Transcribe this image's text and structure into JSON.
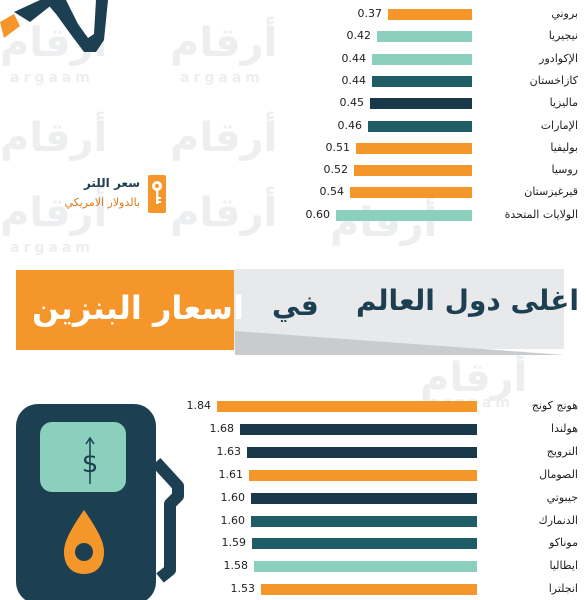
{
  "colors": {
    "orange": "#f5962a",
    "teal": "#1e5c66",
    "mint": "#8ad0bc",
    "navy": "#19394a",
    "dark": "#1d3f52",
    "lightgray": "#e7e9ea"
  },
  "watermark": {
    "arabic": "أرقام",
    "latin": "argaam"
  },
  "legend": {
    "line1": "سعر اللتر",
    "line2": "بالدولار الامريكي",
    "icon": "key-icon"
  },
  "banner": {
    "title_a": "اغلى دول العالم",
    "title_b": "في",
    "title_c": "اسعار البنزين"
  },
  "chart_data": [
    {
      "type": "bar",
      "orientation": "horizontal",
      "title": "",
      "categories": [
        "بروني",
        "نيجيريا",
        "الإكوادور",
        "كازاخستان",
        "ماليزيا",
        "الإمارات",
        "بوليفيا",
        "روسيا",
        "قيرغيزستان",
        "الولايات المتحدة"
      ],
      "values": [
        0.37,
        0.42,
        0.44,
        0.44,
        0.45,
        0.46,
        0.51,
        0.52,
        0.54,
        0.6
      ],
      "labels": [
        "0.37",
        "0.42",
        "0.44",
        "0.44",
        "0.45",
        "0.46",
        "0.51",
        "0.52",
        "0.54",
        "0.60"
      ],
      "colors": [
        "#f5962a",
        "#8ad0bc",
        "#8ad0bc",
        "#1e5c66",
        "#19394a",
        "#1e5c66",
        "#f5962a",
        "#f5962a",
        "#f5962a",
        "#8ad0bc"
      ],
      "xlim": [
        0,
        0.6
      ]
    },
    {
      "type": "bar",
      "orientation": "horizontal",
      "title": "",
      "categories": [
        "هونج كونج",
        "هولندا",
        "النرويج",
        "الصومال",
        "جيبوتي",
        "الدنمارك",
        "موناكو",
        "ايطاليا",
        "انجلترا"
      ],
      "values": [
        1.84,
        1.68,
        1.63,
        1.61,
        1.6,
        1.6,
        1.59,
        1.58,
        1.53
      ],
      "labels": [
        "1.84",
        "1.68",
        "1.63",
        "1.61",
        "1.60",
        "1.60",
        "1.59",
        "1.58",
        "1.53"
      ],
      "colors": [
        "#f5962a",
        "#19394a",
        "#19394a",
        "#f5962a",
        "#19394a",
        "#1e5c66",
        "#1e5c66",
        "#8ad0bc",
        "#f5962a"
      ],
      "xlim": [
        0,
        1.84
      ]
    }
  ]
}
